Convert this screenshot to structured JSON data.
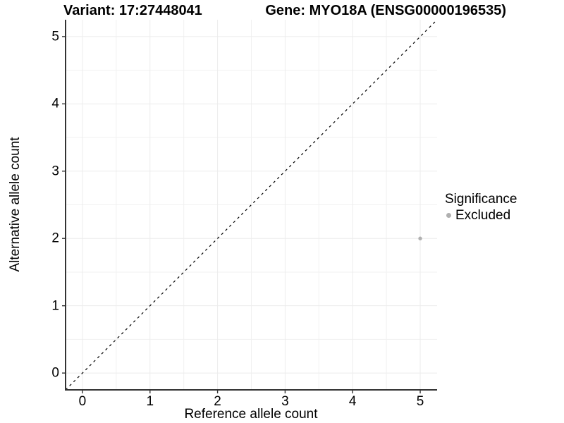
{
  "title": {
    "variant": "Variant: 17:27448041",
    "gene": "Gene: MYO18A (ENSG00000196535)"
  },
  "axes": {
    "x_label": "Reference allele count",
    "y_label": "Alternative allele count"
  },
  "legend": {
    "title": "Significance",
    "items": [
      {
        "label": "Excluded",
        "color": "#b0b0b0",
        "marker": "circle"
      }
    ]
  },
  "chart_data": {
    "type": "scatter",
    "title": "Variant: 17:27448041 / Gene: MYO18A (ENSG00000196535)",
    "xlabel": "Reference allele count",
    "ylabel": "Alternative allele count",
    "xlim": [
      -0.25,
      5.25
    ],
    "ylim": [
      -0.25,
      5.25
    ],
    "x_ticks": [
      0,
      1,
      2,
      3,
      4,
      5
    ],
    "y_ticks": [
      0,
      1,
      2,
      3,
      4,
      5
    ],
    "minor_ticks": [
      0.5,
      1.5,
      2.5,
      3.5,
      4.5
    ],
    "grid": "major+minor",
    "legend_position": "right",
    "series": [
      {
        "name": "Excluded",
        "color": "#b0b0b0",
        "point_radius": 2.7,
        "points": [
          {
            "x": 5,
            "y": 2
          }
        ]
      }
    ],
    "reference_line": {
      "equation": "y = x",
      "style": "dashed",
      "color": "#000000",
      "from": [
        -0.25,
        -0.25
      ],
      "to": [
        5.25,
        5.25
      ]
    }
  },
  "colors": {
    "background": "#ffffff",
    "gridline_major": "#ececec",
    "gridline_minor": "#f1f1f1",
    "axis_line": "#333333",
    "tick_mark": "#333333",
    "text": "#000000",
    "excluded_point": "#b0b0b0"
  }
}
